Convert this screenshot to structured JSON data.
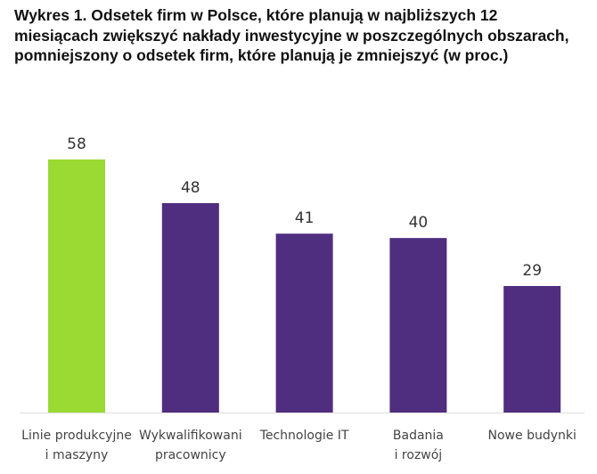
{
  "chart_data": {
    "type": "bar",
    "title": "Wykres 1. Odsetek firm w Polsce, które planują w najbliższych 12 miesiącach zwiększyć nakłady inwestycyjne w poszczególnych obszarach, pomniejszony o odsetek firm, które planują je zmniejszyć (w proc.)",
    "categories": [
      [
        "Linie produkcyjne",
        "i maszyny"
      ],
      [
        "Wykwalifikowani",
        "pracownicy"
      ],
      [
        "Technologie IT"
      ],
      [
        "Badania",
        "i rozwój"
      ],
      [
        "Nowe budynki"
      ]
    ],
    "values": [
      58,
      48,
      41,
      40,
      29
    ],
    "colors": [
      "#9bd933",
      "#4f2d7f",
      "#4f2d7f",
      "#4f2d7f",
      "#4f2d7f"
    ],
    "xlabel": "",
    "ylabel": "",
    "ylim": [
      0,
      60
    ],
    "grid": false,
    "legend": "none"
  }
}
